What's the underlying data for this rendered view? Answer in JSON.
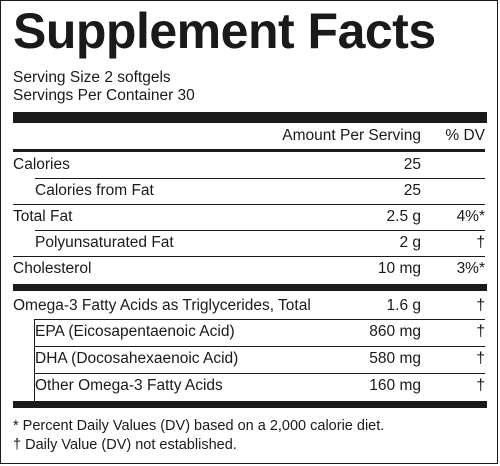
{
  "label": {
    "title": "Supplement Facts",
    "serving_size": "Serving Size 2 softgels",
    "servings_per_container": "Servings Per Container 30"
  },
  "table": {
    "header_amount": "Amount Per Serving",
    "header_dv": "% DV",
    "rows": [
      {
        "name": "Calories",
        "amount": "25",
        "dv": ""
      },
      {
        "name": "Calories from Fat",
        "amount": "25",
        "dv": ""
      },
      {
        "name": "Total Fat",
        "amount": "2.5 g",
        "dv": "4%*"
      },
      {
        "name": "Polyunsaturated Fat",
        "amount": "2 g",
        "dv": "†"
      },
      {
        "name": "Cholesterol",
        "amount": "10 mg",
        "dv": "3%*"
      },
      {
        "name": "Omega-3 Fatty Acids as Triglycerides, Total",
        "amount": "1.6 g",
        "dv": "†"
      },
      {
        "name": "EPA (Eicosapentaenoic Acid)",
        "amount": "860 mg",
        "dv": "†"
      },
      {
        "name": "DHA (Docosahexaenoic Acid)",
        "amount": "580 mg",
        "dv": "†"
      },
      {
        "name": "Other Omega-3 Fatty Acids",
        "amount": "160 mg",
        "dv": "†"
      }
    ]
  },
  "footnotes": {
    "percent_dv_note": "* Percent Daily Values (DV) based on a 2,000 calorie diet.",
    "dagger_note": "† Daily Value (DV) not established."
  }
}
